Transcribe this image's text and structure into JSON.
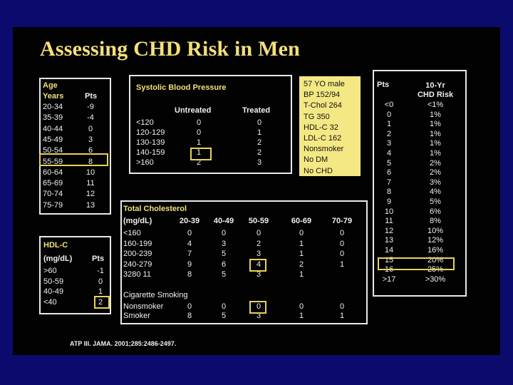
{
  "title": "Assessing CHD Risk in Men",
  "age": {
    "heading": "Age",
    "col_years": "Years",
    "col_pts": "Pts",
    "rows": [
      {
        "years": "20-34",
        "pts": "-9"
      },
      {
        "years": "35-39",
        "pts": "-4"
      },
      {
        "years": "40-44",
        "pts": "0"
      },
      {
        "years": "45-49",
        "pts": "3"
      },
      {
        "years": "50-54",
        "pts": "6"
      },
      {
        "years": "55-59",
        "pts": "8"
      },
      {
        "years": "60-64",
        "pts": "10"
      },
      {
        "years": "65-69",
        "pts": "11"
      },
      {
        "years": "70-74",
        "pts": "12"
      },
      {
        "years": "75-79",
        "pts": "13"
      }
    ]
  },
  "hdl": {
    "heading": "HDL-C",
    "col_unit": "(mg/dL)",
    "col_pts": "Pts",
    "rows": [
      {
        "range": ">60",
        "pts": "-1"
      },
      {
        "range": "50-59",
        "pts": "0"
      },
      {
        "range": "40-49",
        "pts": "1"
      },
      {
        "range": "<40",
        "pts": "2"
      }
    ]
  },
  "sbp": {
    "heading": "Systolic Blood Pressure",
    "col_untreated": "Untreated",
    "col_treated": "Treated",
    "rows": [
      {
        "range": "<120",
        "untreated": "0",
        "treated": "0"
      },
      {
        "range": "120-129",
        "untreated": "0",
        "treated": "1"
      },
      {
        "range": "130-139",
        "untreated": "1",
        "treated": "2"
      },
      {
        "range": "140-159",
        "untreated": "1",
        "treated": "2"
      },
      {
        "range": ">160",
        "untreated": "2",
        "treated": "3"
      }
    ]
  },
  "patient": {
    "lines": [
      "57 YO male",
      "BP 152/94",
      "T-Chol 264",
      "TG 350",
      "HDL-C 32",
      "LDL-C 162",
      "Nonsmoker",
      "No DM",
      "No CHD"
    ]
  },
  "cholesterol": {
    "heading": "Total Cholesterol",
    "col_unit": "(mg/dL)",
    "age_cols": [
      "20-39",
      "40-49",
      "50-59",
      "60-69",
      "70-79"
    ],
    "rows": [
      {
        "range": "<160",
        "vals": [
          "0",
          "0",
          "0",
          "0",
          "0"
        ]
      },
      {
        "range": "160-199",
        "vals": [
          "4",
          "3",
          "2",
          "1",
          "0"
        ]
      },
      {
        "range": "200-239",
        "vals": [
          "7",
          "5",
          "3",
          "1",
          "0"
        ]
      },
      {
        "range": "240-279",
        "vals": [
          "9",
          "6",
          "4",
          "2",
          "1"
        ]
      },
      {
        "range": "3280 11",
        "vals": [
          "8",
          "5",
          "3",
          "1",
          ""
        ]
      }
    ],
    "smoking_heading": "Cigarette Smoking",
    "smoking_rows": [
      {
        "label": "Nonsmoker",
        "vals": [
          "0",
          "0",
          "0",
          "0",
          "0"
        ]
      },
      {
        "label": "Smoker",
        "vals": [
          "8",
          "5",
          "3",
          "1",
          "1"
        ]
      }
    ]
  },
  "risk": {
    "col_pts": "Pts",
    "col_risk_line1": "10-Yr",
    "col_risk_line2": "CHD Risk",
    "rows": [
      {
        "pts": "<0",
        "risk": "<1%"
      },
      {
        "pts": "0",
        "risk": "1%"
      },
      {
        "pts": "1",
        "risk": "1%"
      },
      {
        "pts": "2",
        "risk": "1%"
      },
      {
        "pts": "3",
        "risk": "1%"
      },
      {
        "pts": "4",
        "risk": "1%"
      },
      {
        "pts": "5",
        "risk": "2%"
      },
      {
        "pts": "6",
        "risk": "2%"
      },
      {
        "pts": "7",
        "risk": "3%"
      },
      {
        "pts": "8",
        "risk": "4%"
      },
      {
        "pts": "9",
        "risk": "5%"
      },
      {
        "pts": "10",
        "risk": "6%"
      },
      {
        "pts": "11",
        "risk": "8%"
      },
      {
        "pts": "12",
        "risk": "10%"
      },
      {
        "pts": "13",
        "risk": "12%"
      },
      {
        "pts": "14",
        "risk": "16%"
      },
      {
        "pts": "15",
        "risk": "20%"
      },
      {
        "pts": "16",
        "risk": "25%"
      },
      {
        "pts": ">17",
        "risk": ">30%"
      }
    ]
  },
  "citation": "ATP III. JAMA. 2001;285:2486-2497.",
  "colors": {
    "background": "#0b0b6e",
    "slide": "#020202",
    "title": "#f3e07a",
    "highlight": "#e6d35a",
    "note": "#f4e884"
  }
}
